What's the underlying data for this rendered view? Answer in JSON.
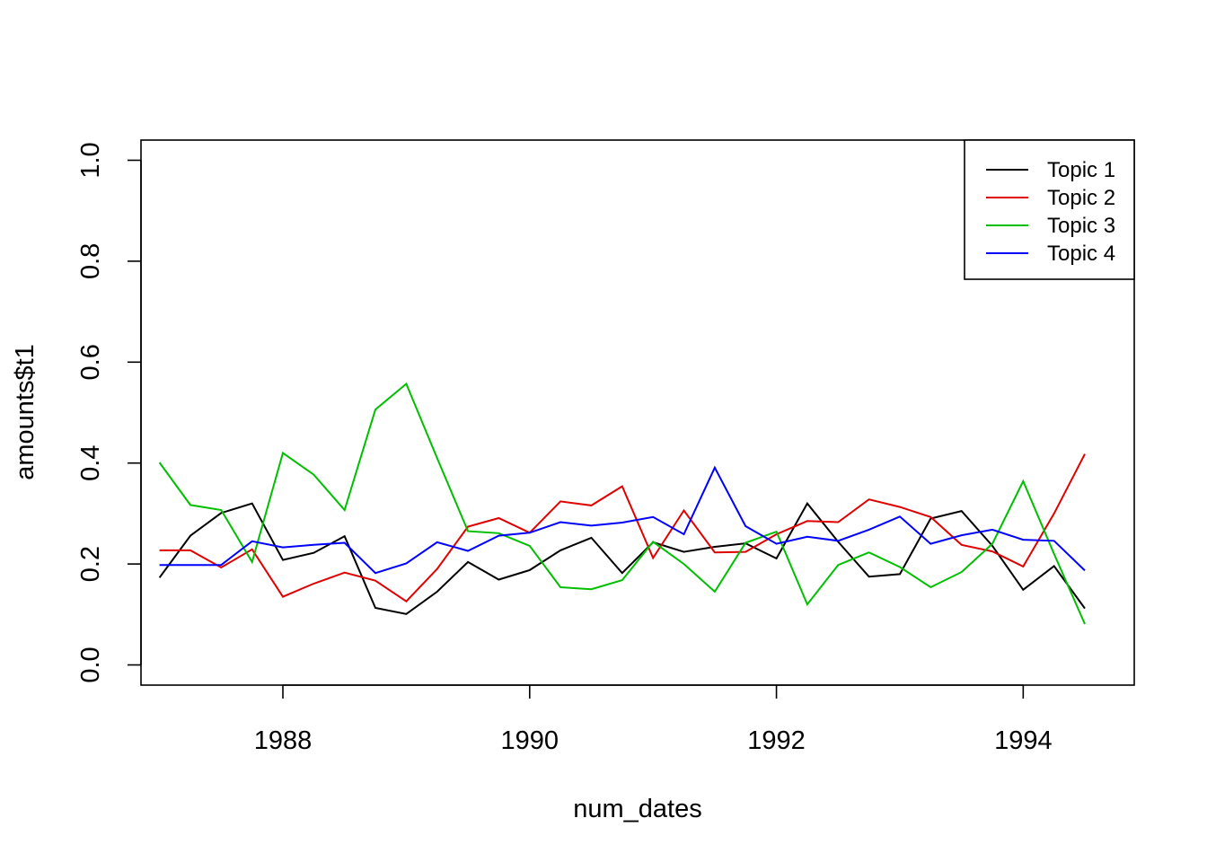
{
  "chart_data": {
    "type": "line",
    "xlabel": "num_dates",
    "ylabel": "amounts$t1",
    "xlim": [
      1986.85,
      1994.9
    ],
    "ylim": [
      -0.04,
      1.04
    ],
    "x_ticks": [
      1988,
      1990,
      1992,
      1994
    ],
    "x_tick_labels": [
      "1988",
      "1990",
      "1992",
      "1994"
    ],
    "y_ticks": [
      0.0,
      0.2,
      0.4,
      0.6,
      0.8,
      1.0
    ],
    "y_tick_labels": [
      "0.0",
      "0.2",
      "0.4",
      "0.6",
      "0.8",
      "1.0"
    ],
    "grid": false,
    "legend_position": "top-right",
    "x": [
      1987.0,
      1987.25,
      1987.5,
      1987.75,
      1988.0,
      1988.25,
      1988.5,
      1988.75,
      1989.0,
      1989.25,
      1989.5,
      1989.75,
      1990.0,
      1990.25,
      1990.5,
      1990.75,
      1991.0,
      1991.25,
      1991.5,
      1991.75,
      1992.0,
      1992.25,
      1992.5,
      1992.75,
      1993.0,
      1993.25,
      1993.5,
      1993.75,
      1994.0,
      1994.25,
      1994.5
    ],
    "series": [
      {
        "name": "Topic 1",
        "color": "#000000",
        "values": [
          0.173,
          0.256,
          0.301,
          0.32,
          0.208,
          0.222,
          0.255,
          0.113,
          0.101,
          0.145,
          0.204,
          0.169,
          0.188,
          0.227,
          0.252,
          0.182,
          0.243,
          0.224,
          0.234,
          0.241,
          0.211,
          0.32,
          0.244,
          0.175,
          0.18,
          0.29,
          0.305,
          0.236,
          0.149,
          0.196,
          0.112
        ]
      },
      {
        "name": "Topic 2",
        "color": "#df0000",
        "values": [
          0.227,
          0.227,
          0.193,
          0.229,
          0.135,
          0.161,
          0.183,
          0.167,
          0.126,
          0.19,
          0.274,
          0.291,
          0.262,
          0.324,
          0.316,
          0.354,
          0.212,
          0.306,
          0.223,
          0.224,
          0.259,
          0.285,
          0.283,
          0.328,
          0.313,
          0.293,
          0.238,
          0.225,
          0.195,
          0.3,
          0.418
        ]
      },
      {
        "name": "Topic 3",
        "color": "#00bf00",
        "values": [
          0.401,
          0.317,
          0.307,
          0.204,
          0.42,
          0.377,
          0.307,
          0.506,
          0.557,
          0.41,
          0.265,
          0.261,
          0.236,
          0.154,
          0.15,
          0.168,
          0.244,
          0.2,
          0.145,
          0.242,
          0.264,
          0.12,
          0.198,
          0.223,
          0.194,
          0.154,
          0.184,
          0.24,
          0.364,
          0.22,
          0.081
        ]
      },
      {
        "name": "Topic 4",
        "color": "#0000ff",
        "values": [
          0.198,
          0.198,
          0.198,
          0.245,
          0.233,
          0.238,
          0.242,
          0.182,
          0.201,
          0.243,
          0.226,
          0.256,
          0.262,
          0.283,
          0.276,
          0.282,
          0.293,
          0.259,
          0.391,
          0.275,
          0.24,
          0.254,
          0.246,
          0.268,
          0.294,
          0.24,
          0.257,
          0.268,
          0.248,
          0.246,
          0.187
        ]
      }
    ]
  }
}
